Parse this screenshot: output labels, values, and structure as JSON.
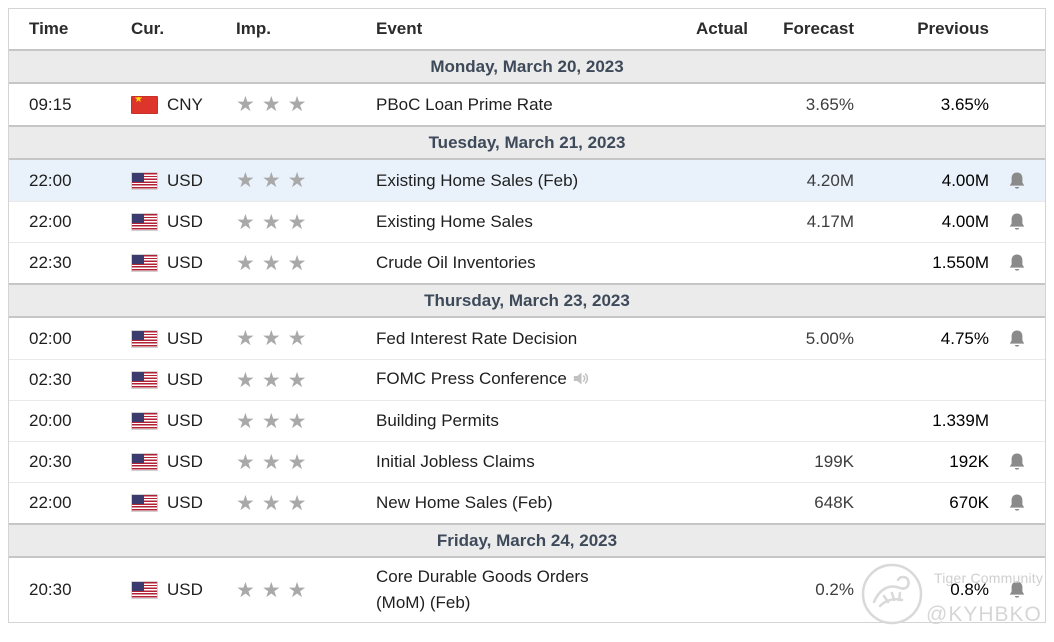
{
  "columns": {
    "time": "Time",
    "cur": "Cur.",
    "imp": "Imp.",
    "event": "Event",
    "actual": "Actual",
    "forecast": "Forecast",
    "previous": "Previous"
  },
  "icons": {
    "star_glyph": "★",
    "bell": "bell-icon",
    "speaker": "speaker-icon"
  },
  "colors": {
    "highlight_row": "#e9f2fb",
    "date_row_bg": "#ebebeb",
    "date_text": "#3e4a5a",
    "star": "#a9a9a9",
    "bell": "#8a8a8a",
    "cn_flag_red": "#dd342c",
    "us_flag_blue": "#3c3b6e",
    "us_flag_red": "#b22234"
  },
  "watermark": {
    "brand": "Tiger Community",
    "handle": "@KYHBKO"
  },
  "sections": [
    {
      "date": "Monday, March 20, 2023",
      "rows": [
        {
          "time": "09:15",
          "currency": "CNY",
          "flag": "cn",
          "importance": 3,
          "event": "PBoC Loan Prime Rate",
          "speaker": false,
          "actual": "",
          "forecast": "3.65%",
          "previous": "3.65%",
          "bell": false,
          "highlighted": false
        }
      ]
    },
    {
      "date": "Tuesday, March 21, 2023",
      "rows": [
        {
          "time": "22:00",
          "currency": "USD",
          "flag": "us",
          "importance": 3,
          "event": "Existing Home Sales (Feb)",
          "speaker": false,
          "actual": "",
          "forecast": "4.20M",
          "previous": "4.00M",
          "bell": true,
          "highlighted": true
        },
        {
          "time": "22:00",
          "currency": "USD",
          "flag": "us",
          "importance": 3,
          "event": "Existing Home Sales",
          "speaker": false,
          "actual": "",
          "forecast": "4.17M",
          "previous": "4.00M",
          "bell": true,
          "highlighted": false
        },
        {
          "time": "22:30",
          "currency": "USD",
          "flag": "us",
          "importance": 3,
          "event": "Crude Oil Inventories",
          "speaker": false,
          "actual": "",
          "forecast": "",
          "previous": "1.550M",
          "bell": true,
          "highlighted": false
        }
      ]
    },
    {
      "date": "Thursday, March 23, 2023",
      "rows": [
        {
          "time": "02:00",
          "currency": "USD",
          "flag": "us",
          "importance": 3,
          "event": "Fed Interest Rate Decision",
          "speaker": false,
          "actual": "",
          "forecast": "5.00%",
          "previous": "4.75%",
          "bell": true,
          "highlighted": false
        },
        {
          "time": "02:30",
          "currency": "USD",
          "flag": "us",
          "importance": 3,
          "event": "FOMC Press Conference",
          "speaker": true,
          "actual": "",
          "forecast": "",
          "previous": "",
          "bell": false,
          "highlighted": false
        },
        {
          "time": "20:00",
          "currency": "USD",
          "flag": "us",
          "importance": 3,
          "event": "Building Permits",
          "speaker": false,
          "actual": "",
          "forecast": "",
          "previous": "1.339M",
          "bell": false,
          "highlighted": false
        },
        {
          "time": "20:30",
          "currency": "USD",
          "flag": "us",
          "importance": 3,
          "event": "Initial Jobless Claims",
          "speaker": false,
          "actual": "",
          "forecast": "199K",
          "previous": "192K",
          "bell": true,
          "highlighted": false
        },
        {
          "time": "22:00",
          "currency": "USD",
          "flag": "us",
          "importance": 3,
          "event": "New Home Sales (Feb)",
          "speaker": false,
          "actual": "",
          "forecast": "648K",
          "previous": "670K",
          "bell": true,
          "highlighted": false
        }
      ]
    },
    {
      "date": "Friday, March 24, 2023",
      "rows": [
        {
          "time": "20:30",
          "currency": "USD",
          "flag": "us",
          "importance": 3,
          "event": "Core Durable Goods Orders (MoM) (Feb)",
          "speaker": false,
          "actual": "",
          "forecast": "0.2%",
          "previous": "0.8%",
          "bell": true,
          "highlighted": false
        }
      ]
    }
  ]
}
